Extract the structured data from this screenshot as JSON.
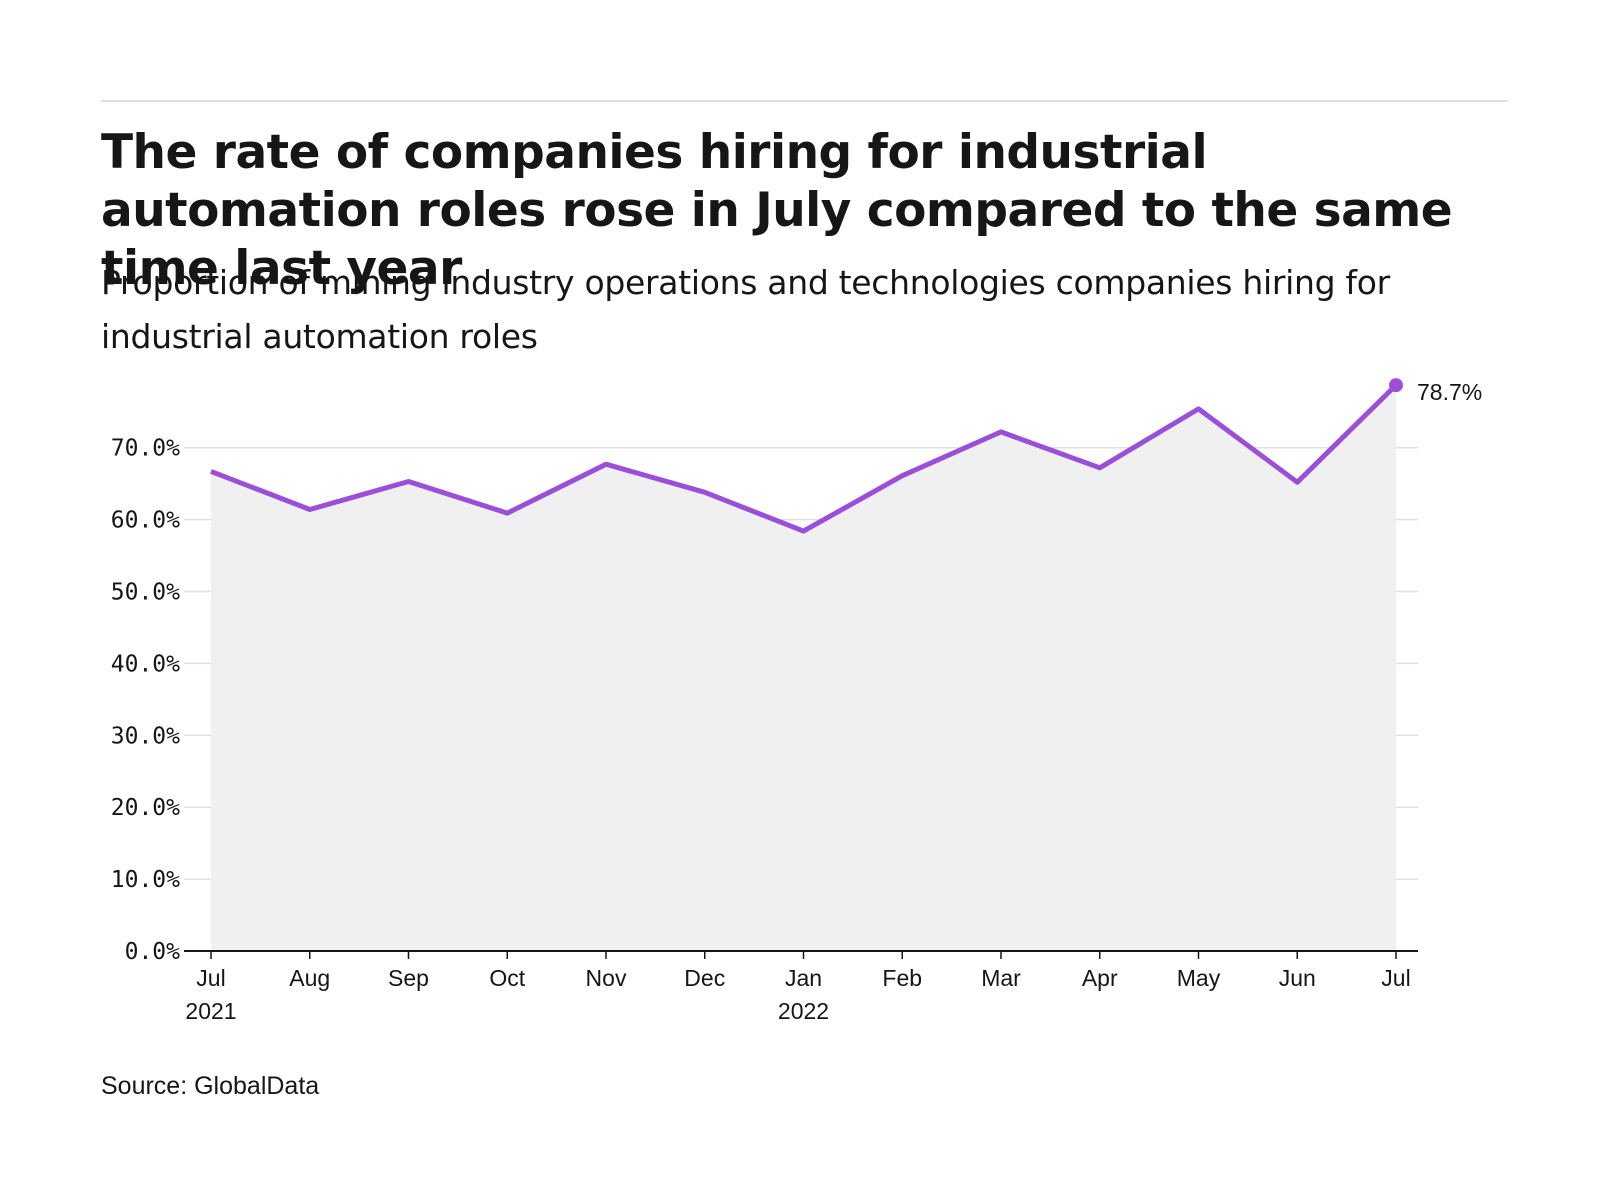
{
  "title": "The rate of companies hiring for industrial automation roles rose in July compared to the same time last year",
  "subtitle": "Proportion of mining industry operations and technologies companies hiring for industrial automation roles",
  "source": "Source: GlobalData",
  "colors": {
    "line": "#9b4fd9",
    "area": "#f0f0f0",
    "grid": "#e0e0e0",
    "axis": "#161616"
  },
  "chart_data": {
    "type": "area",
    "x": [
      "2021-07",
      "2021-08",
      "2021-09",
      "2021-10",
      "2021-11",
      "2021-12",
      "2022-01",
      "2022-02",
      "2022-03",
      "2022-04",
      "2022-05",
      "2022-06",
      "2022-07"
    ],
    "x_tick_labels": [
      [
        "Jul",
        "2021"
      ],
      [
        "Aug"
      ],
      [
        "Sep"
      ],
      [
        "Oct"
      ],
      [
        "Nov"
      ],
      [
        "Dec"
      ],
      [
        "Jan",
        "2022"
      ],
      [
        "Feb"
      ],
      [
        "Mar"
      ],
      [
        "Apr"
      ],
      [
        "May"
      ],
      [
        "Jun"
      ],
      [
        "Jul"
      ]
    ],
    "series": [
      {
        "values": [
          66.7,
          61.4,
          65.3,
          60.9,
          67.7,
          63.8,
          58.4,
          66.1,
          72.2,
          67.2,
          75.4,
          65.2,
          78.7
        ]
      }
    ],
    "ylim": [
      0,
      80
    ],
    "y_ticks": [
      0,
      10,
      20,
      30,
      40,
      50,
      60,
      70
    ],
    "y_tick_labels": [
      "0.0%",
      "10.0%",
      "20.0%",
      "30.0%",
      "40.0%",
      "50.0%",
      "60.0%",
      "70.0%"
    ],
    "end_label": "78.7%",
    "grid": true,
    "xlabel": "",
    "ylabel": ""
  }
}
